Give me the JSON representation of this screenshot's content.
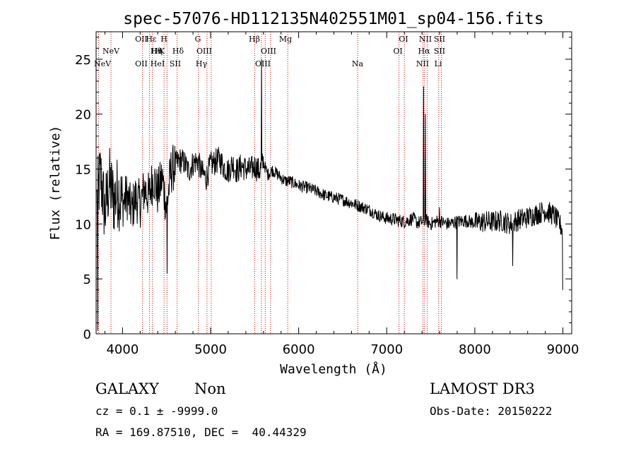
{
  "chart_data": {
    "type": "line",
    "title": "spec-57076-HD112135N402551M01_sp04-156.fits",
    "xlabel": "Wavelength (Å)",
    "ylabel": "Flux (relative)",
    "xlim": [
      3700,
      9100
    ],
    "ylim": [
      0,
      27.5
    ],
    "xticks": [
      4000,
      5000,
      6000,
      7000,
      8000,
      9000
    ],
    "yticks": [
      0,
      5,
      10,
      15,
      20,
      25
    ],
    "grid": false,
    "series": [
      {
        "name": "flux",
        "x": [
          3700,
          3750,
          3800,
          3850,
          3900,
          3950,
          4000,
          4050,
          4100,
          4150,
          4200,
          4250,
          4300,
          4350,
          4400,
          4450,
          4500,
          4550,
          4600,
          4650,
          4700,
          4750,
          4800,
          4850,
          4900,
          4950,
          5000,
          5050,
          5100,
          5150,
          5200,
          5250,
          5300,
          5350,
          5400,
          5450,
          5500,
          5550,
          5600,
          5650,
          5700,
          5750,
          5800,
          5850,
          5900,
          5950,
          6000,
          6100,
          6200,
          6300,
          6400,
          6500,
          6600,
          6700,
          6800,
          6900,
          7000,
          7100,
          7200,
          7300,
          7350,
          7400,
          7450,
          7500,
          7550,
          7600,
          7650,
          7700,
          7800,
          7900,
          8000,
          8100,
          8200,
          8300,
          8400,
          8500,
          8600,
          8700,
          8800,
          8900,
          9000
        ],
        "y": [
          11.5,
          14.5,
          11.0,
          13.8,
          12.2,
          13.0,
          11.8,
          12.6,
          11.2,
          12.4,
          11.8,
          13.2,
          12.5,
          14.3,
          12.8,
          14.2,
          11.5,
          14.8,
          15.4,
          15.8,
          15.6,
          14.8,
          15.5,
          15.8,
          14.7,
          14.2,
          15.4,
          15.6,
          15.9,
          15.2,
          14.8,
          15.5,
          14.8,
          15.3,
          15.0,
          14.9,
          15.3,
          14.8,
          15.6,
          14.5,
          14.9,
          14.6,
          14.2,
          13.9,
          13.9,
          13.7,
          13.5,
          13.3,
          13.0,
          12.6,
          12.4,
          12.2,
          11.9,
          11.6,
          11.3,
          10.8,
          10.5,
          10.4,
          10.2,
          10.5,
          10.1,
          10.2,
          10.3,
          10.0,
          10.2,
          10.3,
          10.1,
          10.0,
          10.2,
          10.3,
          10.1,
          10.2,
          10.2,
          10.3,
          10.0,
          10.4,
          10.6,
          10.9,
          11.2,
          10.8,
          9.5
        ]
      }
    ],
    "features": [
      {
        "x": 5577,
        "y": 25.0
      },
      {
        "x": 7418,
        "y": 22.5
      },
      {
        "x": 7440,
        "y": 20.0
      },
      {
        "x": 7600,
        "y": 11.5
      },
      {
        "x": 4505,
        "y": 5.5
      },
      {
        "x": 7800,
        "y": 5.0
      },
      {
        "x": 8430,
        "y": 6.2
      },
      {
        "x": 3720,
        "y": 0.3
      },
      {
        "x": 9000,
        "y": 4.0
      }
    ],
    "line_markers": [
      {
        "x": 3869,
        "labels": [
          "NeV"
        ]
      },
      {
        "x": 3727,
        "labels": [
          "NeV"
        ]
      },
      {
        "x": 4227,
        "labels": [
          "OII",
          "OII"
        ]
      },
      {
        "x": 4305,
        "labels": [
          "Hε"
        ]
      },
      {
        "x": 4340,
        "labels": [
          "Hη",
          "Hθ",
          "HeI"
        ]
      },
      {
        "x": 4471,
        "labels": [
          "K"
        ]
      },
      {
        "x": 4505,
        "labels": [
          "H"
        ]
      },
      {
        "x": 4620,
        "labels": [
          "Hδ",
          "SII"
        ]
      },
      {
        "x": 4861,
        "labels": [
          "G"
        ]
      },
      {
        "x": 4959,
        "labels": [
          "OIII",
          "Hγ"
        ]
      },
      {
        "x": 5007,
        "labels": []
      },
      {
        "x": 5500,
        "labels": [
          "Hβ"
        ]
      },
      {
        "x": 5577,
        "labels": []
      },
      {
        "x": 5620,
        "labels": [
          "OIII",
          "OIII"
        ]
      },
      {
        "x": 5680,
        "labels": []
      },
      {
        "x": 5876,
        "labels": [
          "Mg"
        ]
      },
      {
        "x": 6670,
        "labels": [
          "Na"
        ]
      },
      {
        "x": 7139,
        "labels": [
          "OI",
          "OI"
        ]
      },
      {
        "x": 7200,
        "labels": []
      },
      {
        "x": 7412,
        "labels": [
          "NII",
          "Hα",
          "NII"
        ]
      },
      {
        "x": 7430,
        "labels": []
      },
      {
        "x": 7460,
        "labels": []
      },
      {
        "x": 7590,
        "labels": [
          "SII",
          "SII",
          "Li"
        ]
      },
      {
        "x": 7620,
        "labels": []
      }
    ],
    "label_texts": [
      "NeV",
      "NeV",
      "OII",
      "Hε",
      "Hη",
      "H",
      "Hθ",
      "K",
      "HeI",
      "Hδ",
      "SII",
      "G",
      "OIII",
      "Hγ",
      "Hβ",
      "OIII",
      "OIII",
      "Mg",
      "Na",
      "OI",
      "OI",
      "NII",
      "SII",
      "Hα",
      "SII",
      "NII",
      "Li",
      "OII"
    ]
  },
  "info": {
    "object_class": "GALAXY",
    "subclass": "Non",
    "survey": "LAMOST DR3",
    "cz": "cz = 0.1 ± -9999.0",
    "obs_date": "Obs-Date: 20150222",
    "coords": "RA = 169.87510, DEC =  40.44329"
  },
  "colors": {
    "line": "#000000",
    "marker": "#cc0000"
  }
}
